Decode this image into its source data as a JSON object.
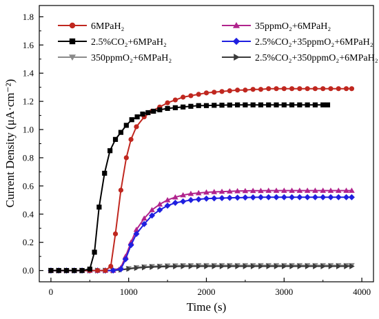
{
  "chart_data": {
    "type": "line",
    "xlabel": "Time (s)",
    "ylabel": "Current Density (μA·cm⁻²)",
    "xlim": [
      -150,
      4150
    ],
    "ylim": [
      -0.08,
      1.88
    ],
    "xticks": [
      0,
      1000,
      2000,
      3000,
      4000
    ],
    "yticks": [
      0.0,
      0.2,
      0.4,
      0.6,
      0.8,
      1.0,
      1.2,
      1.4,
      1.6,
      1.8
    ],
    "grid": false,
    "legend": "top",
    "series": [
      {
        "name": "6MPaH₂",
        "color": "#c0271f",
        "marker": "circle",
        "x": [
          0,
          100,
          200,
          300,
          400,
          500,
          600,
          700,
          770,
          830,
          900,
          970,
          1030,
          1100,
          1200,
          1300,
          1400,
          1500,
          1600,
          1700,
          1800,
          1900,
          2000,
          2100,
          2200,
          2300,
          2400,
          2500,
          2600,
          2700,
          2800,
          2900,
          3000,
          3100,
          3200,
          3300,
          3400,
          3500,
          3600,
          3700,
          3800,
          3870
        ],
        "y": [
          0,
          0,
          0,
          0,
          0,
          0,
          0,
          0,
          0.03,
          0.26,
          0.57,
          0.8,
          0.93,
          1.02,
          1.09,
          1.13,
          1.16,
          1.19,
          1.21,
          1.23,
          1.24,
          1.25,
          1.26,
          1.265,
          1.27,
          1.275,
          1.28,
          1.28,
          1.285,
          1.285,
          1.29,
          1.29,
          1.29,
          1.29,
          1.29,
          1.29,
          1.29,
          1.29,
          1.29,
          1.29,
          1.29,
          1.29
        ]
      },
      {
        "name": "35ppmO₂+6MPaH₂",
        "color": "#b0238c",
        "marker": "triangle-up",
        "x": [
          0,
          100,
          200,
          300,
          400,
          500,
          600,
          700,
          800,
          900,
          960,
          1030,
          1100,
          1200,
          1300,
          1400,
          1500,
          1600,
          1700,
          1800,
          1900,
          2000,
          2100,
          2200,
          2300,
          2400,
          2500,
          2600,
          2700,
          2800,
          2900,
          3000,
          3100,
          3200,
          3300,
          3400,
          3500,
          3600,
          3700,
          3800,
          3870
        ],
        "y": [
          0,
          0,
          0,
          0,
          0,
          0,
          0,
          0,
          0,
          0.02,
          0.1,
          0.2,
          0.29,
          0.37,
          0.43,
          0.47,
          0.5,
          0.52,
          0.535,
          0.545,
          0.55,
          0.555,
          0.558,
          0.56,
          0.562,
          0.564,
          0.565,
          0.566,
          0.566,
          0.567,
          0.567,
          0.567,
          0.567,
          0.567,
          0.567,
          0.567,
          0.567,
          0.567,
          0.567,
          0.567,
          0.567
        ]
      },
      {
        "name": "2.5%CO₂+6MPaH₂",
        "color": "#000000",
        "marker": "square",
        "x": [
          0,
          100,
          200,
          300,
          400,
          500,
          560,
          620,
          690,
          760,
          830,
          900,
          970,
          1040,
          1110,
          1180,
          1250,
          1320,
          1400,
          1500,
          1600,
          1700,
          1800,
          1900,
          2000,
          2100,
          2200,
          2300,
          2400,
          2500,
          2600,
          2700,
          2800,
          2900,
          3000,
          3100,
          3200,
          3300,
          3400,
          3500,
          3560
        ],
        "y": [
          0,
          0,
          0,
          0,
          0,
          0.01,
          0.13,
          0.45,
          0.69,
          0.85,
          0.93,
          0.98,
          1.03,
          1.07,
          1.09,
          1.11,
          1.12,
          1.13,
          1.14,
          1.15,
          1.155,
          1.16,
          1.165,
          1.17,
          1.17,
          1.172,
          1.173,
          1.174,
          1.175,
          1.175,
          1.175,
          1.175,
          1.175,
          1.175,
          1.175,
          1.175,
          1.175,
          1.175,
          1.175,
          1.175,
          1.175
        ]
      },
      {
        "name": "2.5%CO₂+35ppmO₂+6MPaH₂",
        "color": "#1f1fe0",
        "marker": "diamond",
        "x": [
          0,
          100,
          200,
          300,
          400,
          500,
          600,
          700,
          800,
          900,
          960,
          1030,
          1100,
          1200,
          1300,
          1400,
          1500,
          1600,
          1700,
          1800,
          1900,
          2000,
          2100,
          2200,
          2300,
          2400,
          2500,
          2600,
          2700,
          2800,
          2900,
          3000,
          3100,
          3200,
          3300,
          3400,
          3500,
          3600,
          3700,
          3800,
          3870
        ],
        "y": [
          0,
          0,
          0,
          0,
          0,
          0,
          0,
          0,
          0,
          0.01,
          0.08,
          0.18,
          0.26,
          0.33,
          0.39,
          0.43,
          0.46,
          0.48,
          0.49,
          0.5,
          0.505,
          0.51,
          0.512,
          0.514,
          0.516,
          0.517,
          0.518,
          0.519,
          0.52,
          0.52,
          0.52,
          0.52,
          0.52,
          0.52,
          0.52,
          0.52,
          0.52,
          0.52,
          0.52,
          0.52,
          0.52
        ]
      },
      {
        "name": "350ppmO₂+6MPaH₂",
        "color": "#8a8a8a",
        "marker": "triangle-down",
        "x": [
          0,
          100,
          200,
          300,
          400,
          500,
          600,
          700,
          800,
          900,
          1000,
          1100,
          1200,
          1300,
          1400,
          1500,
          1600,
          1700,
          1800,
          1900,
          2000,
          2100,
          2200,
          2300,
          2400,
          2500,
          2600,
          2700,
          2800,
          2900,
          3000,
          3100,
          3200,
          3300,
          3400,
          3500,
          3600,
          3700,
          3800,
          3870
        ],
        "y": [
          0,
          0,
          0,
          0,
          0,
          0,
          0,
          0,
          0,
          0.005,
          0.015,
          0.022,
          0.027,
          0.03,
          0.032,
          0.034,
          0.035,
          0.036,
          0.036,
          0.037,
          0.037,
          0.037,
          0.037,
          0.037,
          0.037,
          0.037,
          0.037,
          0.037,
          0.037,
          0.037,
          0.037,
          0.037,
          0.037,
          0.037,
          0.037,
          0.037,
          0.037,
          0.037,
          0.037,
          0.037
        ]
      },
      {
        "name": "2.5%CO₂+350ppmO₂+6MPaH₂",
        "color": "#3a3a3a",
        "marker": "triangle-right",
        "x": [
          0,
          100,
          200,
          300,
          400,
          500,
          600,
          700,
          800,
          900,
          1000,
          1100,
          1200,
          1300,
          1400,
          1500,
          1600,
          1700,
          1800,
          1900,
          2000,
          2100,
          2200,
          2300,
          2400,
          2500,
          2600,
          2700,
          2800,
          2900,
          3000,
          3100,
          3200,
          3300,
          3400,
          3500,
          3600,
          3700,
          3800,
          3870
        ],
        "y": [
          0,
          0,
          0,
          0,
          0,
          0,
          0,
          0,
          0,
          0.005,
          0.012,
          0.018,
          0.022,
          0.025,
          0.027,
          0.028,
          0.029,
          0.03,
          0.03,
          0.03,
          0.03,
          0.03,
          0.03,
          0.03,
          0.03,
          0.03,
          0.03,
          0.03,
          0.03,
          0.03,
          0.03,
          0.03,
          0.03,
          0.03,
          0.03,
          0.03,
          0.03,
          0.03,
          0.03,
          0.03
        ]
      }
    ]
  }
}
